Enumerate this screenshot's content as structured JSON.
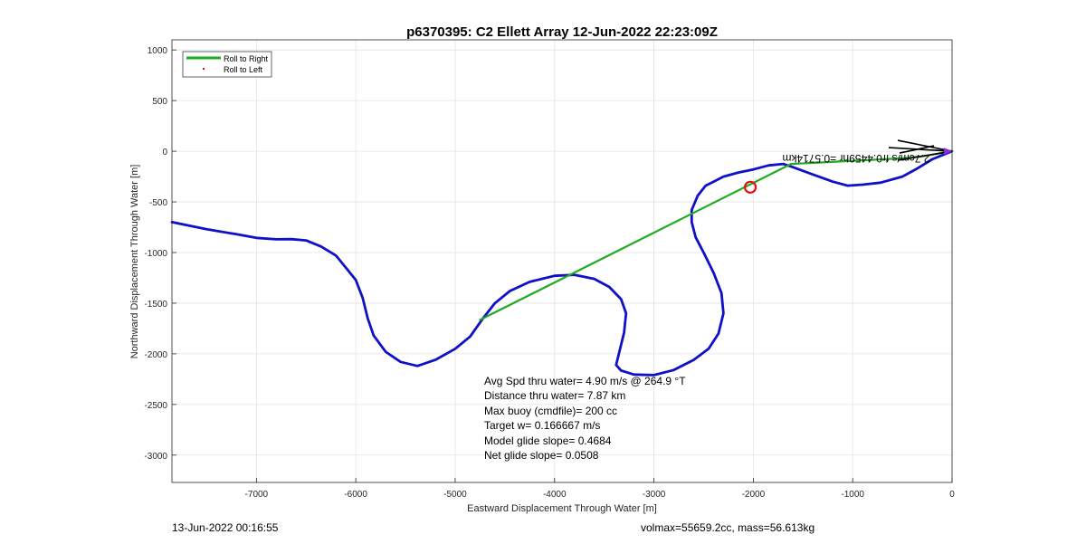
{
  "chart_data": {
    "type": "line",
    "title": "p6370395: C2 Ellett Array 12-Jun-2022 22:23:09Z",
    "xlabel": "Eastward Displacement Through Water [m]",
    "ylabel": "Northward Displacement Through Water [m]",
    "xlim": [
      -7850,
      0
    ],
    "ylim": [
      -3270,
      1100
    ],
    "xticks": [
      -7000,
      -6000,
      -5000,
      -4000,
      -3000,
      -2000,
      -1000,
      0
    ],
    "yticks": [
      1000,
      500,
      0,
      -500,
      -1000,
      -1500,
      -2000,
      -2500,
      -3000
    ],
    "grid": true,
    "legend": {
      "placement": "top-left",
      "entries": [
        "Roll to Right",
        "Roll to Left"
      ]
    },
    "series": [
      {
        "name": "track",
        "color": "#1010c8",
        "x": [
          -7850,
          -7500,
          -7200,
          -7000,
          -6800,
          -6650,
          -6500,
          -6350,
          -6200,
          -6100,
          -6000,
          -5930,
          -5880,
          -5820,
          -5700,
          -5550,
          -5380,
          -5200,
          -5000,
          -4850,
          -4720,
          -4600,
          -4450,
          -4250,
          -4000,
          -3800,
          -3600,
          -3450,
          -3330,
          -3280,
          -3300,
          -3380,
          -3330,
          -3200,
          -3000,
          -2800,
          -2600,
          -2450,
          -2350,
          -2300,
          -2320,
          -2400,
          -2500,
          -2580,
          -2620,
          -2620,
          -2560,
          -2480,
          -2400,
          -2300,
          -2150,
          -2000,
          -1850,
          -1700,
          -1620,
          -1400,
          -1200,
          -1050,
          -900,
          -720,
          -500,
          -350,
          -200,
          0
        ],
        "y": [
          -700,
          -770,
          -820,
          -855,
          -870,
          -868,
          -880,
          -940,
          -1030,
          -1150,
          -1270,
          -1450,
          -1650,
          -1820,
          -1980,
          -2080,
          -2120,
          -2060,
          -1950,
          -1830,
          -1650,
          -1500,
          -1380,
          -1290,
          -1230,
          -1220,
          -1260,
          -1340,
          -1460,
          -1600,
          -1790,
          -2110,
          -2165,
          -2205,
          -2210,
          -2160,
          -2060,
          -1950,
          -1800,
          -1600,
          -1400,
          -1200,
          -1000,
          -850,
          -700,
          -580,
          -440,
          -340,
          -300,
          -250,
          -210,
          -180,
          -140,
          -125,
          -150,
          -230,
          -300,
          -340,
          -330,
          -310,
          -250,
          -170,
          -80,
          0
        ]
      },
      {
        "name": "Roll to Right",
        "color": "#22aa22",
        "x": [
          -4750,
          -1620,
          -500,
          -300,
          0
        ],
        "y": [
          -1665,
          -125,
          -70,
          -50,
          0
        ]
      }
    ],
    "markers": [
      {
        "kind": "circle",
        "color": "#e01010",
        "x": -2030,
        "y": -355
      },
      {
        "kind": "start",
        "color": "#8a2be2",
        "x": 0,
        "y": 0
      }
    ],
    "current_label": "2.7cm/s fr0.4459hr =0.5714km",
    "stats": [
      "Avg Spd thru water=  4.90 m/s @ 264.9 °T",
      "Distance thru water=  7.87 km",
      "Max buoy (cmdfile)= 200 cc",
      "Target w= 0.166667 m/s",
      "Model glide slope= 0.4684",
      "Net glide slope= 0.0508"
    ],
    "footer_left": "13-Jun-2022 00:16:55",
    "footer_right": "volmax=55659.2cc, mass=56.613kg"
  }
}
